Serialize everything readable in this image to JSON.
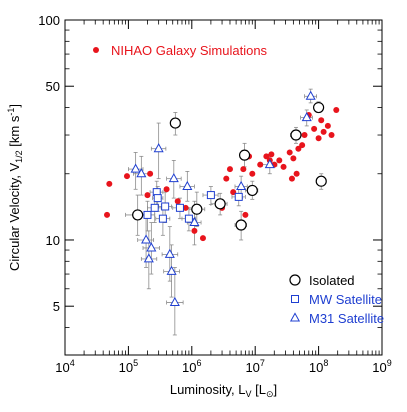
{
  "chart_data": {
    "type": "scatter",
    "xscale": "log",
    "yscale": "log",
    "xlim": [
      10000,
      1000000000
    ],
    "ylim": [
      3,
      100
    ],
    "xlabel": "Luminosity, L_V [L_⊙]",
    "ylabel": "Circular Velocity, V_1/2 [km s^-1]",
    "x_tick_labels": [
      "10^4",
      "10^5",
      "10^6",
      "10^7",
      "10^8",
      "10^9"
    ],
    "y_tick_labels": [
      "5",
      "10",
      "50",
      "100"
    ],
    "grid": false,
    "legend": {
      "nihao": "NIHAO Galaxy Simulations",
      "isolated": "Isolated",
      "mw": "MW Satellite",
      "m31": "M31 Satellite"
    },
    "colors": {
      "nihao": "#e8141c",
      "observed": "#000000",
      "mw": "#1f3fd1",
      "m31": "#1f3fd1",
      "errorbar": "#8c8c8c"
    },
    "series": [
      {
        "name": "NIHAO Galaxy Simulations",
        "marker": "filled-circle",
        "points": [
          {
            "x": 46000,
            "y": 13.0
          },
          {
            "x": 50000,
            "y": 18.0
          },
          {
            "x": 95000,
            "y": 19.5
          },
          {
            "x": 200000,
            "y": 16.0
          },
          {
            "x": 220000,
            "y": 20.0
          },
          {
            "x": 400000,
            "y": 17.0
          },
          {
            "x": 600000,
            "y": 15.0
          },
          {
            "x": 800000,
            "y": 14.0
          },
          {
            "x": 1100000,
            "y": 11.0
          },
          {
            "x": 1500000,
            "y": 10.2
          },
          {
            "x": 2000000,
            "y": 16.0
          },
          {
            "x": 3000000,
            "y": 14.0
          },
          {
            "x": 3500000,
            "y": 19.0
          },
          {
            "x": 4000000,
            "y": 21.0
          },
          {
            "x": 4500000,
            "y": 16.5
          },
          {
            "x": 6500000,
            "y": 21.0
          },
          {
            "x": 7000000,
            "y": 13.0
          },
          {
            "x": 8000000,
            "y": 24.0
          },
          {
            "x": 9000000,
            "y": 20.0
          },
          {
            "x": 12000000,
            "y": 22.0
          },
          {
            "x": 15000000,
            "y": 24.0
          },
          {
            "x": 17000000,
            "y": 23.0
          },
          {
            "x": 18000000,
            "y": 24.5
          },
          {
            "x": 20000000,
            "y": 22.0
          },
          {
            "x": 24000000,
            "y": 23.0
          },
          {
            "x": 28000000,
            "y": 21.5
          },
          {
            "x": 35000000,
            "y": 25.0
          },
          {
            "x": 38000000,
            "y": 19.0
          },
          {
            "x": 40000000,
            "y": 23.5
          },
          {
            "x": 45000000,
            "y": 20.0
          },
          {
            "x": 48000000,
            "y": 26.0
          },
          {
            "x": 55000000,
            "y": 27.0
          },
          {
            "x": 60000000,
            "y": 30.0
          },
          {
            "x": 70000000,
            "y": 37.0
          },
          {
            "x": 85000000,
            "y": 32.0
          },
          {
            "x": 100000000,
            "y": 29.0
          },
          {
            "x": 110000000,
            "y": 35.0
          },
          {
            "x": 120000000,
            "y": 31.0
          },
          {
            "x": 140000000,
            "y": 33.0
          },
          {
            "x": 160000000,
            "y": 30.0
          },
          {
            "x": 190000000,
            "y": 39.0
          }
        ]
      },
      {
        "name": "Isolated",
        "marker": "open-circle",
        "points": [
          {
            "x": 140000,
            "y": 13.0,
            "xlo": 90000,
            "xhi": 200000,
            "ylo": 10.5,
            "yhi": 16.0
          },
          {
            "x": 550000,
            "y": 34.0,
            "xlo": 470000,
            "xhi": 640000,
            "ylo": 30.0,
            "yhi": 38.0
          },
          {
            "x": 1200000,
            "y": 13.8,
            "xlo": 900000,
            "xhi": 1600000,
            "ylo": 11.5,
            "yhi": 16.5
          },
          {
            "x": 2800000,
            "y": 14.6,
            "xlo": 2000000,
            "xhi": 3600000,
            "ylo": 13.0,
            "yhi": 16.3
          },
          {
            "x": 6000000,
            "y": 11.7,
            "xlo": 4800000,
            "xhi": 7300000,
            "ylo": 10.0,
            "yhi": 13.5
          },
          {
            "x": 6800000,
            "y": 24.3,
            "xlo": 5800000,
            "xhi": 8000000,
            "ylo": 21.5,
            "yhi": 27.5
          },
          {
            "x": 9000000,
            "y": 16.8,
            "xlo": 7000000,
            "xhi": 11000000,
            "ylo": 15.3,
            "yhi": 18.5
          },
          {
            "x": 44000000,
            "y": 30.0,
            "xlo": 36000000,
            "xhi": 53000000,
            "ylo": 27.5,
            "yhi": 32.5
          },
          {
            "x": 100000000,
            "y": 40.0,
            "xlo": 85000000,
            "xhi": 115000000,
            "ylo": 38.0,
            "yhi": 42.5
          },
          {
            "x": 110000000,
            "y": 18.5,
            "xlo": 95000000,
            "xhi": 125000000,
            "ylo": 17.0,
            "yhi": 20.0
          }
        ]
      },
      {
        "name": "MW Satellite",
        "marker": "open-square",
        "points": [
          {
            "x": 280000,
            "y": 16.5,
            "xlo": 220000,
            "xhi": 350000,
            "ylo": 14.5,
            "yhi": 18.5
          },
          {
            "x": 290000,
            "y": 15.5,
            "xlo": 240000,
            "xhi": 350000,
            "ylo": 13.5,
            "yhi": 17.5
          },
          {
            "x": 200000,
            "y": 13.0,
            "xlo": 150000,
            "xhi": 260000,
            "ylo": 11.0,
            "yhi": 15.0
          },
          {
            "x": 260000,
            "y": 14.0,
            "xlo": 200000,
            "xhi": 330000,
            "ylo": 12.0,
            "yhi": 16.0
          },
          {
            "x": 350000,
            "y": 12.5,
            "xlo": 270000,
            "xhi": 450000,
            "ylo": 10.5,
            "yhi": 14.5
          },
          {
            "x": 380000,
            "y": 14.2,
            "xlo": 300000,
            "xhi": 480000,
            "ylo": 12.0,
            "yhi": 16.5
          },
          {
            "x": 650000,
            "y": 14.0,
            "xlo": 500000,
            "xhi": 850000,
            "ylo": 12.5,
            "yhi": 15.5
          },
          {
            "x": 900000,
            "y": 12.5,
            "xlo": 700000,
            "xhi": 1150000,
            "ylo": 11.0,
            "yhi": 14.0
          },
          {
            "x": 2000000,
            "y": 16.0,
            "xlo": 1500000,
            "xhi": 2600000,
            "ylo": 14.5,
            "yhi": 17.5
          },
          {
            "x": 5500000,
            "y": 15.7,
            "xlo": 4300000,
            "xhi": 7000000,
            "ylo": 14.3,
            "yhi": 17.0
          }
        ]
      },
      {
        "name": "M31 Satellite",
        "marker": "open-triangle",
        "points": [
          {
            "x": 130000,
            "y": 21.0,
            "xlo": 100000,
            "xhi": 170000,
            "ylo": 17.0,
            "yhi": 25.0
          },
          {
            "x": 160000,
            "y": 20.0,
            "xlo": 120000,
            "xhi": 210000,
            "ylo": 16.0,
            "yhi": 24.0
          },
          {
            "x": 300000,
            "y": 26.0,
            "xlo": 230000,
            "xhi": 390000,
            "ylo": 19.0,
            "yhi": 34.0
          },
          {
            "x": 190000,
            "y": 10.0,
            "xlo": 140000,
            "xhi": 250000,
            "ylo": 7.5,
            "yhi": 13.0
          },
          {
            "x": 230000,
            "y": 9.2,
            "xlo": 170000,
            "xhi": 310000,
            "ylo": 7.0,
            "yhi": 12.0
          },
          {
            "x": 210000,
            "y": 8.2,
            "xlo": 160000,
            "xhi": 280000,
            "ylo": 6.0,
            "yhi": 11.0
          },
          {
            "x": 450000,
            "y": 8.6,
            "xlo": 340000,
            "xhi": 600000,
            "ylo": 6.5,
            "yhi": 11.5
          },
          {
            "x": 480000,
            "y": 7.2,
            "xlo": 360000,
            "xhi": 640000,
            "ylo": 5.5,
            "yhi": 9.5
          },
          {
            "x": 540000,
            "y": 5.2,
            "xlo": 400000,
            "xhi": 730000,
            "ylo": 3.7,
            "yhi": 7.5
          },
          {
            "x": 520000,
            "y": 19.0,
            "xlo": 400000,
            "xhi": 680000,
            "ylo": 15.5,
            "yhi": 23.0
          },
          {
            "x": 850000,
            "y": 17.5,
            "xlo": 650000,
            "xhi": 1100000,
            "ylo": 15.0,
            "yhi": 20.5
          },
          {
            "x": 1100000,
            "y": 12.0,
            "xlo": 850000,
            "xhi": 1400000,
            "ylo": 9.5,
            "yhi": 15.0
          },
          {
            "x": 6000000,
            "y": 17.5,
            "xlo": 4800000,
            "xhi": 7500000,
            "ylo": 15.5,
            "yhi": 19.5
          },
          {
            "x": 17000000,
            "y": 22.0,
            "xlo": 13000000,
            "xhi": 22000000,
            "ylo": 20.0,
            "yhi": 24.5
          },
          {
            "x": 65000000,
            "y": 36.0,
            "xlo": 52000000,
            "xhi": 80000000,
            "ylo": 33.0,
            "yhi": 39.0
          },
          {
            "x": 75000000,
            "y": 45.0,
            "xlo": 60000000,
            "xhi": 93000000,
            "ylo": 42.0,
            "yhi": 48.5
          }
        ]
      }
    ]
  }
}
